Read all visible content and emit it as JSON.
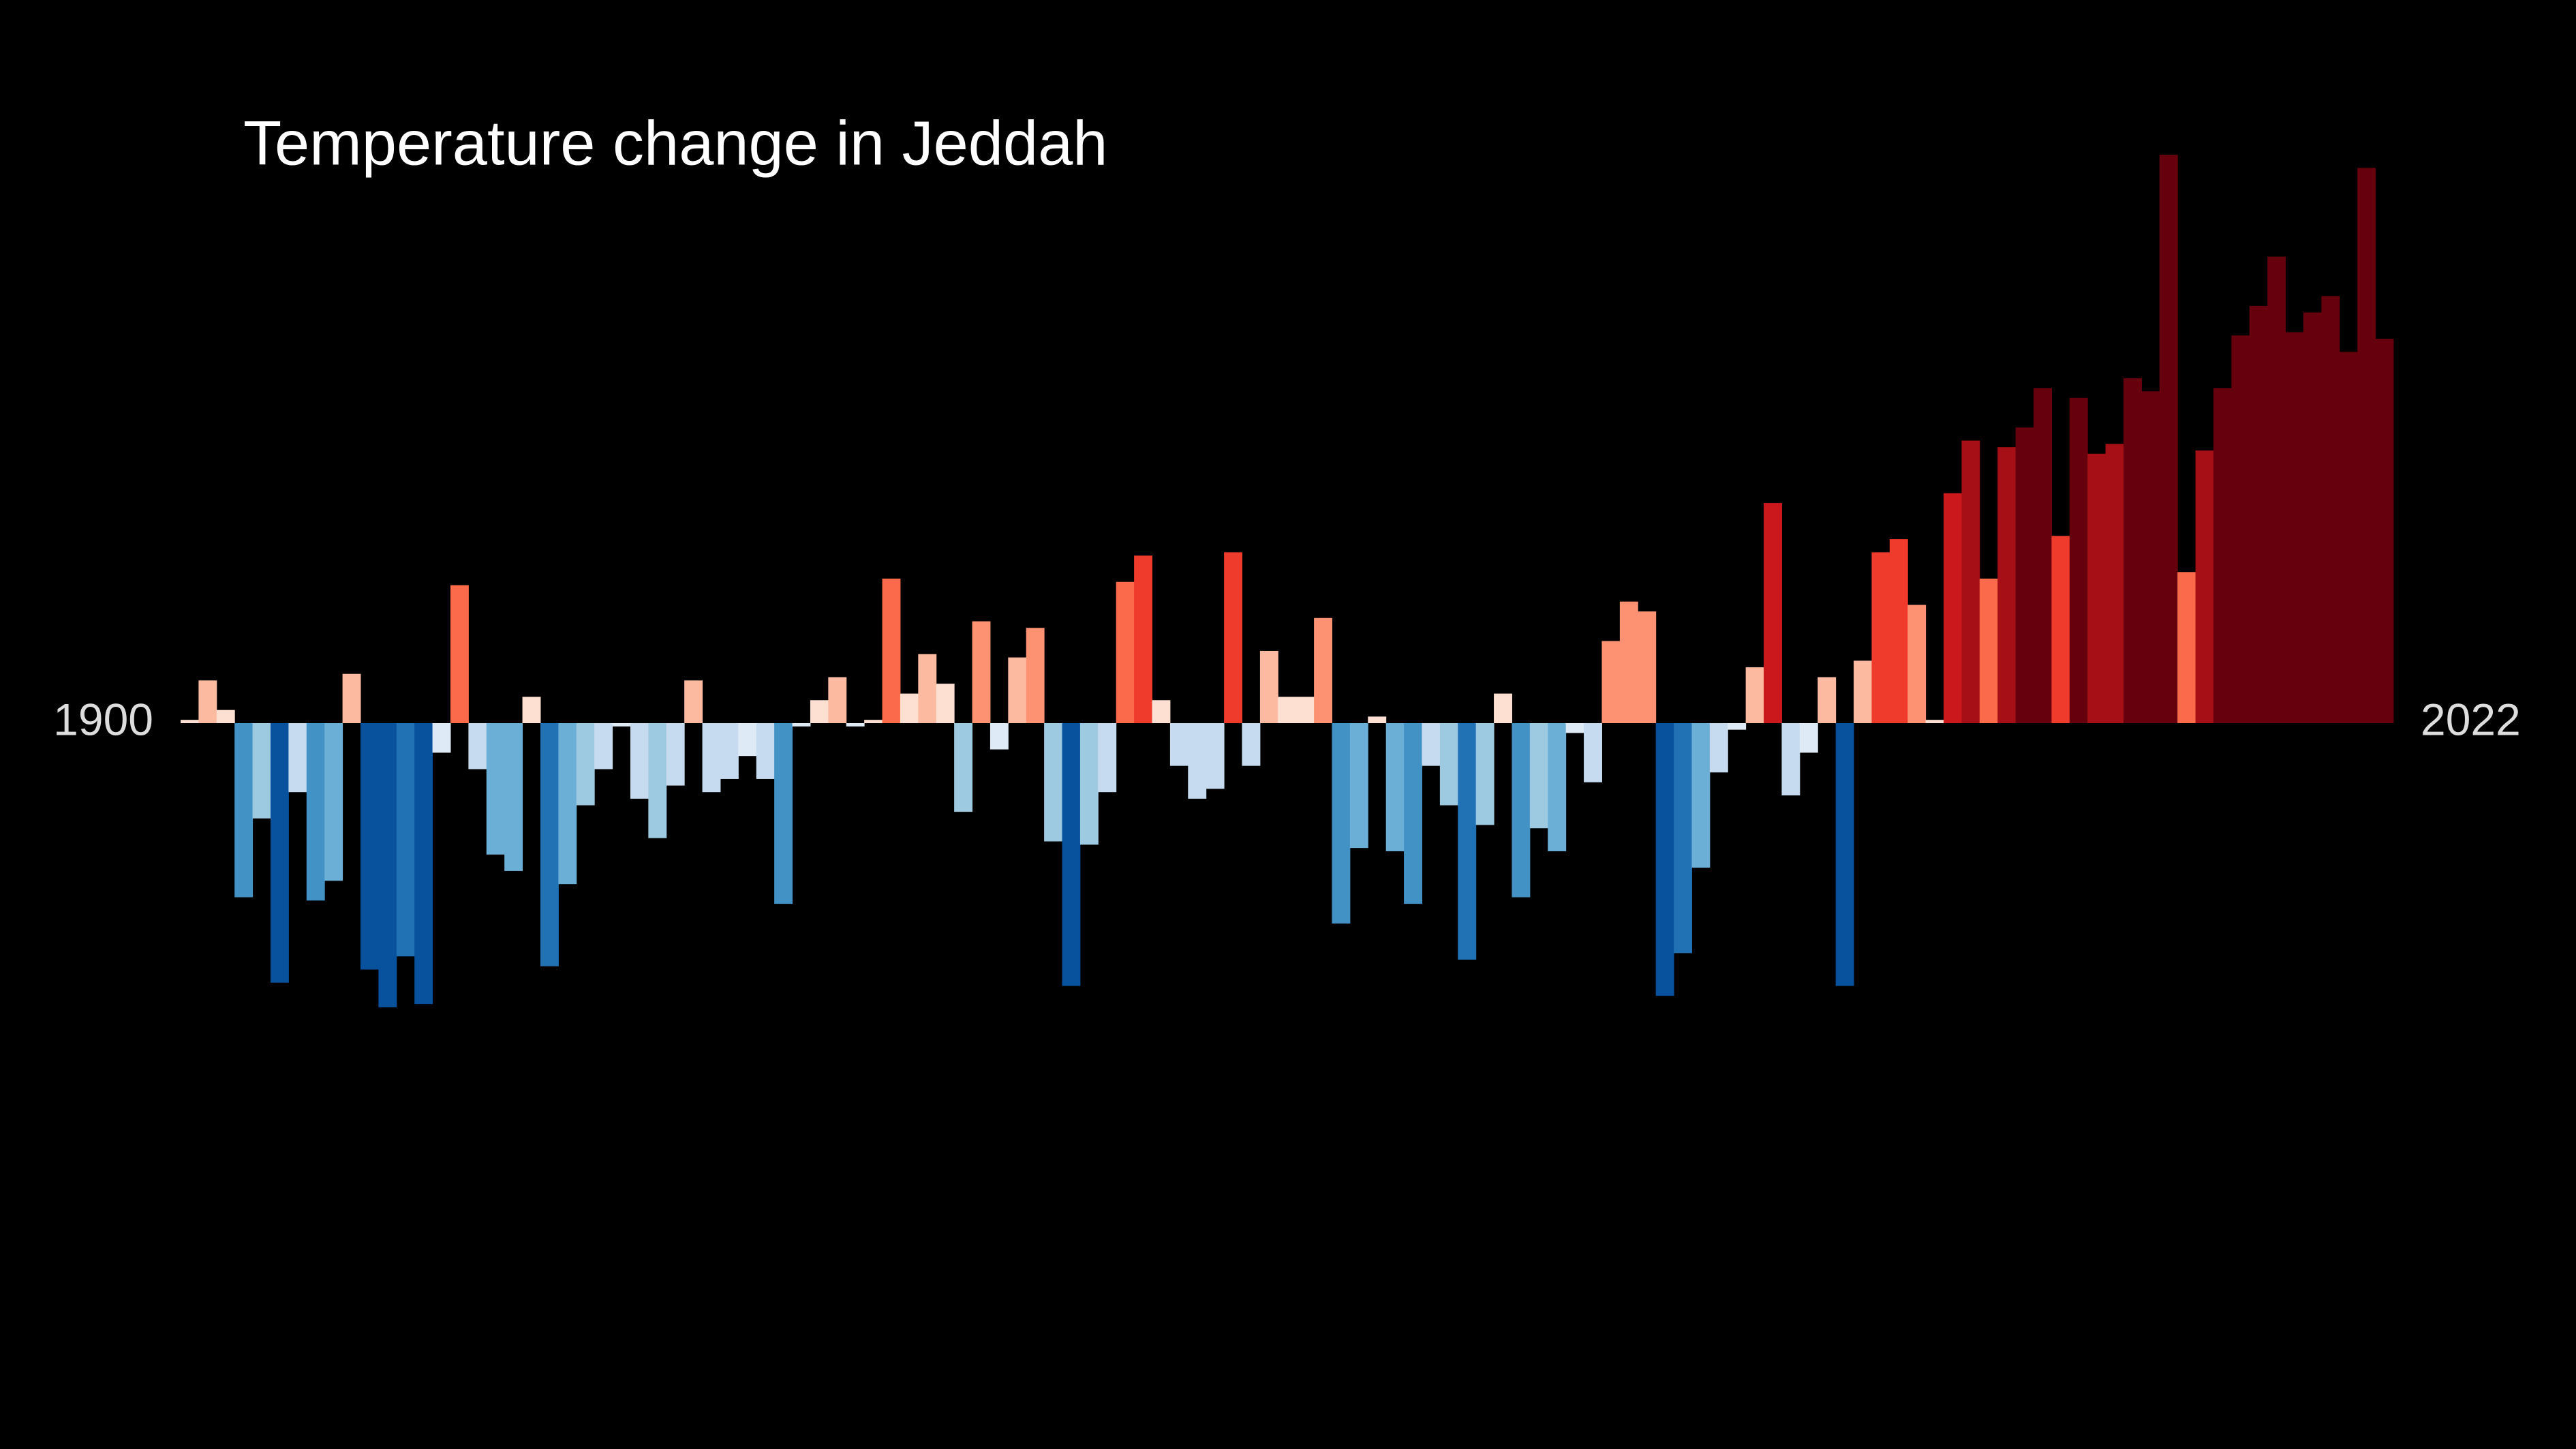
{
  "chart_data": {
    "type": "bar",
    "title": "Temperature change in Jeddah",
    "categories": [
      "1900",
      null,
      null,
      null,
      null,
      null,
      null,
      null,
      null,
      null,
      null,
      null,
      null,
      null,
      null,
      null,
      null,
      null,
      null,
      null,
      null,
      null,
      null,
      null,
      null,
      null,
      null,
      null,
      null,
      null,
      null,
      null,
      null,
      null,
      null,
      null,
      null,
      null,
      null,
      null,
      null,
      null,
      null,
      null,
      null,
      null,
      null,
      null,
      null,
      null,
      null,
      null,
      null,
      null,
      null,
      null,
      null,
      null,
      null,
      null,
      null,
      null,
      null,
      null,
      null,
      null,
      null,
      null,
      null,
      null,
      null,
      null,
      null,
      null,
      null,
      null,
      null,
      null,
      null,
      null,
      null,
      null,
      null,
      null,
      null,
      null,
      null,
      null,
      null,
      null,
      null,
      null,
      null,
      null,
      null,
      null,
      null,
      null,
      null,
      null,
      null,
      null,
      null,
      null,
      null,
      null,
      null,
      null,
      null,
      null,
      null,
      null,
      null,
      null,
      null,
      null,
      null,
      null,
      null,
      null,
      null,
      null,
      "2022"
    ],
    "values": [
      0.02,
      0.26,
      0.08,
      -1.06,
      -0.58,
      -1.58,
      -0.42,
      -1.08,
      -0.96,
      0.3,
      -1.5,
      -1.73,
      -1.42,
      -1.71,
      -0.18,
      0.84,
      -0.28,
      -0.8,
      -0.9,
      0.16,
      -1.48,
      -0.98,
      -0.5,
      -0.28,
      -0.02,
      -0.46,
      -0.7,
      -0.38,
      0.26,
      -0.42,
      -0.34,
      -0.2,
      -0.34,
      -1.1,
      -0.02,
      0.14,
      0.28,
      -0.02,
      0.02,
      0.88,
      0.18,
      0.42,
      0.24,
      -0.54,
      0.62,
      -0.16,
      0.4,
      0.58,
      -0.72,
      -1.6,
      -0.74,
      -0.42,
      0.86,
      1.02,
      0.14,
      -0.26,
      -0.46,
      -0.4,
      1.04,
      -0.26,
      0.44,
      0.16,
      0.16,
      0.64,
      -1.22,
      -0.76,
      0.04,
      -0.78,
      -1.1,
      -0.26,
      -0.5,
      -1.44,
      -0.62,
      0.18,
      -1.06,
      -0.64,
      -0.78,
      -0.06,
      -0.36,
      0.5,
      0.74,
      0.68,
      -1.66,
      -1.4,
      -0.88,
      -0.3,
      -0.04,
      0.34,
      1.34,
      -0.44,
      -0.18,
      0.28,
      -1.6,
      0.38,
      1.04,
      1.12,
      0.72,
      0.02,
      1.4,
      1.72,
      0.88,
      1.68,
      1.8,
      2.04,
      1.14,
      1.98,
      1.64,
      1.7,
      2.1,
      2.02,
      3.46,
      0.92,
      1.66,
      2.04,
      2.36,
      2.54,
      2.84,
      2.38,
      2.5,
      2.6,
      2.26,
      3.38,
      2.34
    ],
    "ylim": [
      -2,
      4
    ],
    "positive_colors": [
      "#fee0d2",
      "#fcbba1",
      "#fc9272",
      "#fb6a4a",
      "#ef3b2c",
      "#cb181d",
      "#a50f15",
      "#67000d"
    ],
    "negative_colors": [
      "#deebf7",
      "#c6dbef",
      "#9ecae1",
      "#6baed6",
      "#4292c6",
      "#2171b5",
      "#08519c",
      "#08306b"
    ]
  }
}
